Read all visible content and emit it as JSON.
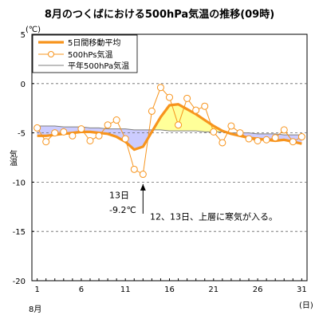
{
  "chart_data": {
    "type": "line",
    "title": "8月のつくばにおける500hPa気温の推移(09時)",
    "ylabel": "気温",
    "yunit": "(℃)",
    "xlabel_bottom": "8月",
    "xunit": "(日)",
    "ylim": [
      -20,
      5
    ],
    "xlim": [
      1,
      31
    ],
    "yticks": [
      5,
      0,
      -5,
      -10,
      -15,
      -20
    ],
    "xticks": [
      1,
      6,
      11,
      16,
      21,
      26,
      31
    ],
    "grid": "horizontal-dashed",
    "legend_position": "top-left",
    "x": [
      1,
      2,
      3,
      4,
      5,
      6,
      7,
      8,
      9,
      10,
      11,
      12,
      13,
      14,
      15,
      16,
      17,
      18,
      19,
      20,
      21,
      22,
      23,
      24,
      25,
      26,
      27,
      28,
      29,
      30,
      31
    ],
    "series": [
      {
        "name": "5日間移動平均",
        "color": "#f7941d",
        "values": [
          -5.3,
          -5.3,
          -5.2,
          -5.1,
          -5.0,
          -4.9,
          -4.9,
          -5.0,
          -5.1,
          -5.4,
          -5.9,
          -6.7,
          -6.4,
          -4.9,
          -3.4,
          -2.2,
          -2.1,
          -2.6,
          -3.1,
          -3.7,
          -4.3,
          -4.8,
          -5.1,
          -5.3,
          -5.5,
          -5.6,
          -5.7,
          -5.8,
          -5.7,
          -5.9,
          -6.1
        ]
      },
      {
        "name": "500hPs気温",
        "color": "#f7941d",
        "values": [
          -4.5,
          -5.9,
          -5.0,
          -4.9,
          -5.3,
          -4.6,
          -5.8,
          -5.3,
          -4.2,
          -3.7,
          -5.6,
          -8.7,
          -9.2,
          -2.8,
          -0.4,
          -1.4,
          -4.2,
          -1.5,
          -2.7,
          -2.3,
          -4.9,
          -6.0,
          -4.3,
          -5.0,
          -5.6,
          -5.8,
          -5.7,
          -5.5,
          -4.7,
          -5.9,
          -5.4
        ]
      },
      {
        "name": "平年500hPa気温",
        "color": "#7f7f7f",
        "values": [
          -4.3,
          -4.3,
          -4.3,
          -4.4,
          -4.4,
          -4.4,
          -4.5,
          -4.5,
          -4.6,
          -4.6,
          -4.6,
          -4.7,
          -4.7,
          -4.7,
          -4.7,
          -4.8,
          -4.8,
          -4.8,
          -4.8,
          -4.9,
          -4.9,
          -4.9,
          -5.0,
          -5.0,
          -5.0,
          -5.1,
          -5.1,
          -5.1,
          -5.2,
          -5.2,
          -5.2
        ]
      }
    ],
    "fill_colors": {
      "warm": "#ffff99",
      "cold": "#ccccff"
    },
    "annotations": [
      {
        "x": 13,
        "y": -10.5,
        "text_lines": [
          "13日",
          "-9.2℃"
        ]
      },
      {
        "text": "12、13日、上層に寒気が入る。"
      }
    ]
  }
}
